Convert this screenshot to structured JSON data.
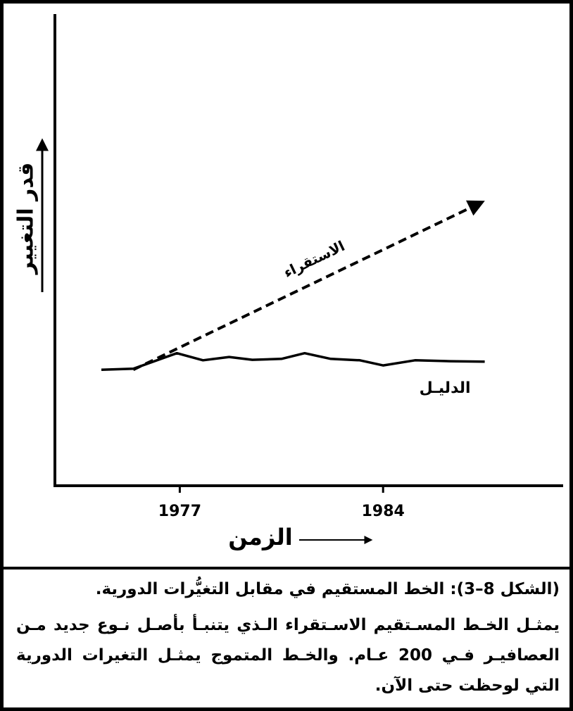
{
  "chart_data": {
    "type": "line",
    "y_label": "قدر التغيير",
    "x_label": "الزمن",
    "xlim": [
      1972.7,
      1990.2
    ],
    "xticks": [
      1977,
      1984
    ],
    "ylim": [
      0,
      100
    ],
    "series": [
      {
        "name": "الاستقراء",
        "color": "#000000",
        "style": "dashed",
        "arrow": true,
        "x": [
          1975.4,
          1987.4
        ],
        "values": [
          24.6,
          60.1
        ]
      },
      {
        "name": "الدليـل",
        "color": "#000000",
        "style": "solid",
        "arrow": false,
        "x": [
          1974.3,
          1975.4,
          1976.9,
          1977.8,
          1978.7,
          1979.5,
          1980.5,
          1981.3,
          1982.2,
          1983.2,
          1984.0,
          1985.1,
          1986.3,
          1987.5
        ],
        "values": [
          24.6,
          24.8,
          28.1,
          26.6,
          27.3,
          26.7,
          26.9,
          28.1,
          26.9,
          26.6,
          25.5,
          26.6,
          26.4,
          26.3
        ]
      }
    ]
  },
  "caption": {
    "title": "(الشكل 8–3): الخط المستقيم في مقابل التغيُّرات الدورية.",
    "body": "يمثـل الخـط المسـتقيم الاسـتقراء الـذي يتنبـأ بأصـل نـوع جديد مـن العصافيـر فـي 200 عـام. والخـط المتموج يمثـل التغيرات الدورية التي لوحظت حتى الآن."
  }
}
